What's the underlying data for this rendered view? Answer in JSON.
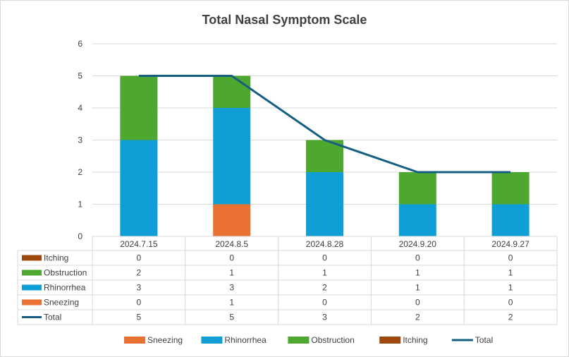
{
  "chart_data": {
    "type": "bar",
    "title": "Total Nasal Symptom Scale",
    "categories": [
      "2024.7.15",
      "2024.8.5",
      "2024.8.28",
      "2024.9.20",
      "2024.9.27"
    ],
    "series": [
      {
        "name": "Itching",
        "values": [
          0,
          0,
          0,
          0,
          0
        ],
        "color": "#9E480E"
      },
      {
        "name": "Obstruction",
        "values": [
          2,
          1,
          1,
          1,
          1
        ],
        "color": "#4EA72E"
      },
      {
        "name": "Rhinorrhea",
        "values": [
          3,
          3,
          2,
          1,
          1
        ],
        "color": "#0F9ED5"
      },
      {
        "name": "Sneezing",
        "values": [
          0,
          1,
          0,
          0,
          0
        ],
        "color": "#E97132"
      },
      {
        "name": "Total",
        "values": [
          5,
          5,
          3,
          2,
          2
        ],
        "color": "#156082",
        "kind": "line"
      }
    ],
    "stack_order": [
      "Sneezing",
      "Rhinorrhea",
      "Obstruction",
      "Itching"
    ],
    "legend_order": [
      "Sneezing",
      "Rhinorrhea",
      "Obstruction",
      "Itching",
      "Total"
    ],
    "ylim": [
      0,
      6
    ],
    "yticks": [
      0,
      1,
      2,
      3,
      4,
      5,
      6
    ],
    "grid": true,
    "legend_position": "bottom",
    "data_table": true
  }
}
